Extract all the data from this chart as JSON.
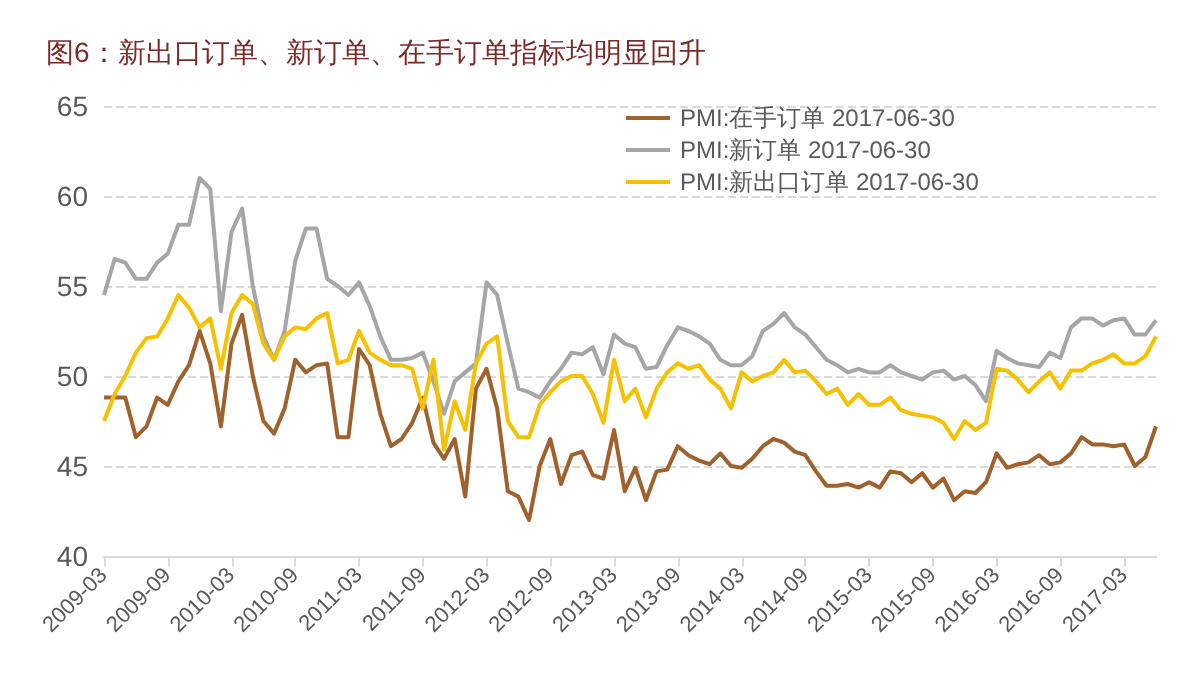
{
  "chart_data": {
    "type": "line",
    "title": "图6：新出口订单、新订单、在手订单指标均明显回升",
    "categories": [
      "2009-03",
      null,
      null,
      null,
      null,
      null,
      "2009-09",
      null,
      null,
      null,
      null,
      null,
      "2010-03",
      null,
      null,
      null,
      null,
      null,
      "2010-09",
      null,
      null,
      null,
      null,
      null,
      "2011-03",
      null,
      null,
      null,
      null,
      null,
      "2011-09",
      null,
      null,
      null,
      null,
      null,
      "2012-03",
      null,
      null,
      null,
      null,
      null,
      "2012-09",
      null,
      null,
      null,
      null,
      null,
      "2013-03",
      null,
      null,
      null,
      null,
      null,
      "2013-09",
      null,
      null,
      null,
      null,
      null,
      "2014-03",
      null,
      null,
      null,
      null,
      null,
      "2014-09",
      null,
      null,
      null,
      null,
      null,
      "2015-03",
      null,
      null,
      null,
      null,
      null,
      "2015-09",
      null,
      null,
      null,
      null,
      null,
      "2016-03",
      null,
      null,
      null,
      null,
      null,
      "2016-09",
      null,
      null,
      null,
      null,
      null,
      "2017-03",
      null,
      null,
      null
    ],
    "series": [
      {
        "name": "PMI:在手订单 2017-06-30",
        "color": "#a0622d",
        "values": [
          48.8,
          48.8,
          48.8,
          46.6,
          47.2,
          48.8,
          48.4,
          49.7,
          50.6,
          52.5,
          50.7,
          47.2,
          51.8,
          53.4,
          50.0,
          47.5,
          46.8,
          48.2,
          50.9,
          50.2,
          50.6,
          50.7,
          46.6,
          46.6,
          51.5,
          50.6,
          47.9,
          46.1,
          46.5,
          47.4,
          48.8,
          46.3,
          45.4,
          46.5,
          43.3,
          49.3,
          50.4,
          48.2,
          43.6,
          43.3,
          42.0,
          45.0,
          46.5,
          44.0,
          45.6,
          45.8,
          44.5,
          44.3,
          47.0,
          43.6,
          44.9,
          43.1,
          44.7,
          44.8,
          46.1,
          45.6,
          45.3,
          45.1,
          45.7,
          45.0,
          44.9,
          45.4,
          46.1,
          46.5,
          46.3,
          45.8,
          45.6,
          44.7,
          43.9,
          43.9,
          44.0,
          43.8,
          44.1,
          43.8,
          44.7,
          44.6,
          44.1,
          44.6,
          43.8,
          44.3,
          43.1,
          43.6,
          43.5,
          44.1,
          45.7,
          44.9,
          45.1,
          45.2,
          45.6,
          45.1,
          45.2,
          45.7,
          46.6,
          46.2,
          46.2,
          46.1,
          46.2,
          45.0,
          45.5,
          47.2
        ]
      },
      {
        "name": "PMI:新订单 2017-06-30",
        "color": "#a6a6a6",
        "values": [
          54.5,
          56.5,
          56.3,
          55.4,
          55.4,
          56.3,
          56.8,
          58.4,
          58.4,
          61.0,
          60.4,
          53.6,
          58.0,
          59.3,
          55.0,
          52.2,
          50.9,
          52.5,
          56.4,
          58.2,
          58.2,
          55.4,
          55.0,
          54.5,
          55.2,
          53.9,
          52.2,
          50.9,
          50.9,
          51.0,
          51.3,
          49.7,
          47.9,
          49.7,
          50.2,
          50.7,
          55.2,
          54.5,
          51.8,
          49.3,
          49.1,
          48.8,
          49.7,
          50.4,
          51.3,
          51.2,
          51.6,
          50.1,
          52.3,
          51.8,
          51.6,
          50.4,
          50.5,
          51.7,
          52.7,
          52.5,
          52.2,
          51.8,
          50.9,
          50.6,
          50.6,
          51.1,
          52.5,
          52.9,
          53.5,
          52.7,
          52.3,
          51.6,
          50.9,
          50.6,
          50.2,
          50.4,
          50.2,
          50.2,
          50.6,
          50.2,
          50.0,
          49.8,
          50.2,
          50.3,
          49.8,
          50.0,
          49.5,
          48.6,
          51.4,
          51.0,
          50.7,
          50.6,
          50.5,
          51.3,
          51.0,
          52.7,
          53.2,
          53.2,
          52.8,
          53.1,
          53.2,
          52.3,
          52.3,
          53.1
        ]
      },
      {
        "name": "PMI:新出口订单 2017-06-30",
        "color": "#f5c100",
        "values": [
          47.5,
          49.0,
          50.0,
          51.3,
          52.1,
          52.2,
          53.2,
          54.5,
          53.8,
          52.7,
          53.2,
          50.4,
          53.5,
          54.5,
          54.0,
          51.8,
          50.9,
          52.2,
          52.7,
          52.6,
          53.2,
          53.5,
          50.7,
          50.9,
          52.5,
          51.3,
          50.9,
          50.6,
          50.6,
          50.4,
          48.2,
          50.9,
          45.9,
          48.6,
          47.0,
          50.7,
          51.8,
          52.2,
          47.5,
          46.6,
          46.6,
          48.4,
          49.1,
          49.7,
          50.0,
          50.0,
          49.0,
          47.4,
          50.9,
          48.6,
          49.3,
          47.7,
          49.3,
          50.2,
          50.7,
          50.4,
          50.6,
          49.8,
          49.3,
          48.2,
          50.2,
          49.7,
          50.0,
          50.2,
          50.9,
          50.2,
          50.3,
          49.7,
          49.0,
          49.3,
          48.4,
          49.0,
          48.4,
          48.4,
          48.8,
          48.1,
          47.9,
          47.8,
          47.7,
          47.4,
          46.5,
          47.5,
          47.0,
          47.4,
          50.4,
          50.3,
          49.8,
          49.1,
          49.7,
          50.2,
          49.3,
          50.3,
          50.3,
          50.7,
          50.9,
          51.2,
          50.7,
          50.7,
          51.1,
          52.2
        ]
      }
    ],
    "ylim": [
      40,
      65
    ],
    "yticks": [
      40,
      45,
      50,
      55,
      60,
      65
    ],
    "grid": "y",
    "legend": "top right",
    "marker": "none",
    "line_style": "solid"
  }
}
